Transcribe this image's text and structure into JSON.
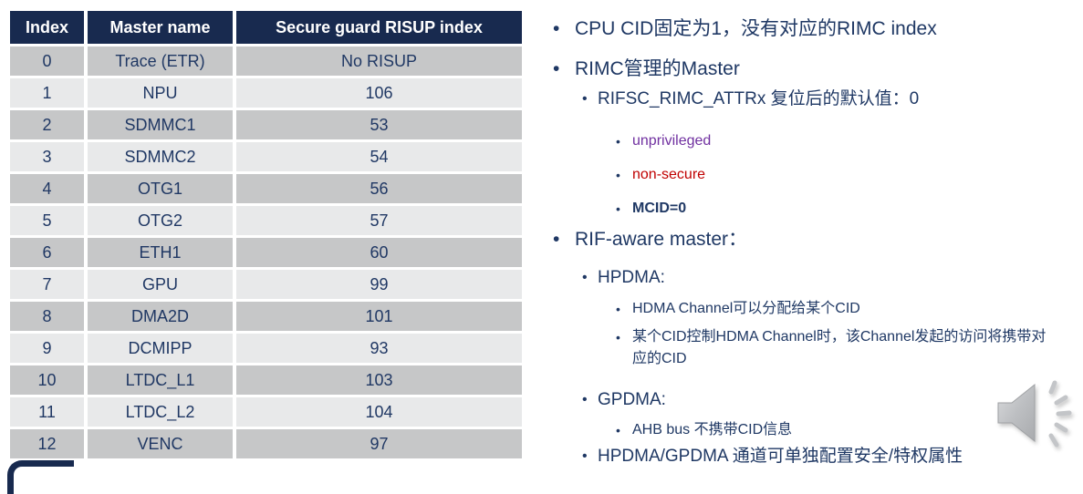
{
  "table": {
    "headers": [
      "Index",
      "Master name",
      "Secure guard RISUP index"
    ],
    "rows": [
      [
        "0",
        "Trace (ETR)",
        "No RISUP"
      ],
      [
        "1",
        "NPU",
        "106"
      ],
      [
        "2",
        "SDMMC1",
        "53"
      ],
      [
        "3",
        "SDMMC2",
        "54"
      ],
      [
        "4",
        "OTG1",
        "56"
      ],
      [
        "5",
        "OTG2",
        "57"
      ],
      [
        "6",
        "ETH1",
        "60"
      ],
      [
        "7",
        "GPU",
        "99"
      ],
      [
        "8",
        "DMA2D",
        "101"
      ],
      [
        "9",
        "DCMIPP",
        "93"
      ],
      [
        "10",
        "LTDC_L1",
        "103"
      ],
      [
        "11",
        "LTDC_L2",
        "104"
      ],
      [
        "12",
        "VENC",
        "97"
      ]
    ]
  },
  "bullets": {
    "bullet_char": "•",
    "items": [
      {
        "level": 1,
        "text": "CPU CID固定为1，没有对应的RIMC index"
      },
      {
        "level": 1,
        "text": "RIMC管理的Master"
      },
      {
        "level": 2,
        "text": "RIFSC_RIMC_ATTRx 复位后的默认值：0"
      },
      {
        "level": 3,
        "text": "unprivileged",
        "color": "purple"
      },
      {
        "level": 3,
        "text": "non-secure",
        "color": "red"
      },
      {
        "level": 3,
        "text": "MCID=0",
        "color": "bold"
      },
      {
        "level": 1,
        "text": "RIF-aware master："
      },
      {
        "level": 2,
        "text": "HPDMA:"
      },
      {
        "level": 3,
        "text": "HDMA Channel可以分配给某个CID"
      },
      {
        "level": 3,
        "text": "某个CID控制HDMA Channel时，该Channel发起的访问将携带对应的CID"
      },
      {
        "level": 2,
        "text": "GPDMA:"
      },
      {
        "level": 3,
        "text": "AHB bus 不携带CID信息"
      },
      {
        "level": 2,
        "text": "HPDMA/GPDMA 通道可单独配置安全/特权属性"
      }
    ]
  },
  "icons": {
    "audio": "speaker-icon",
    "logo": "st-logo-fragment"
  },
  "colors": {
    "header_bg": "#182a4f",
    "header_text": "#ffffff",
    "row_dark": "#c6c7c8",
    "row_light": "#e8e9ea",
    "body_text": "#1f3864",
    "purple": "#7030a0",
    "red": "#c00000",
    "icon_gray": "#b9bbbe"
  }
}
